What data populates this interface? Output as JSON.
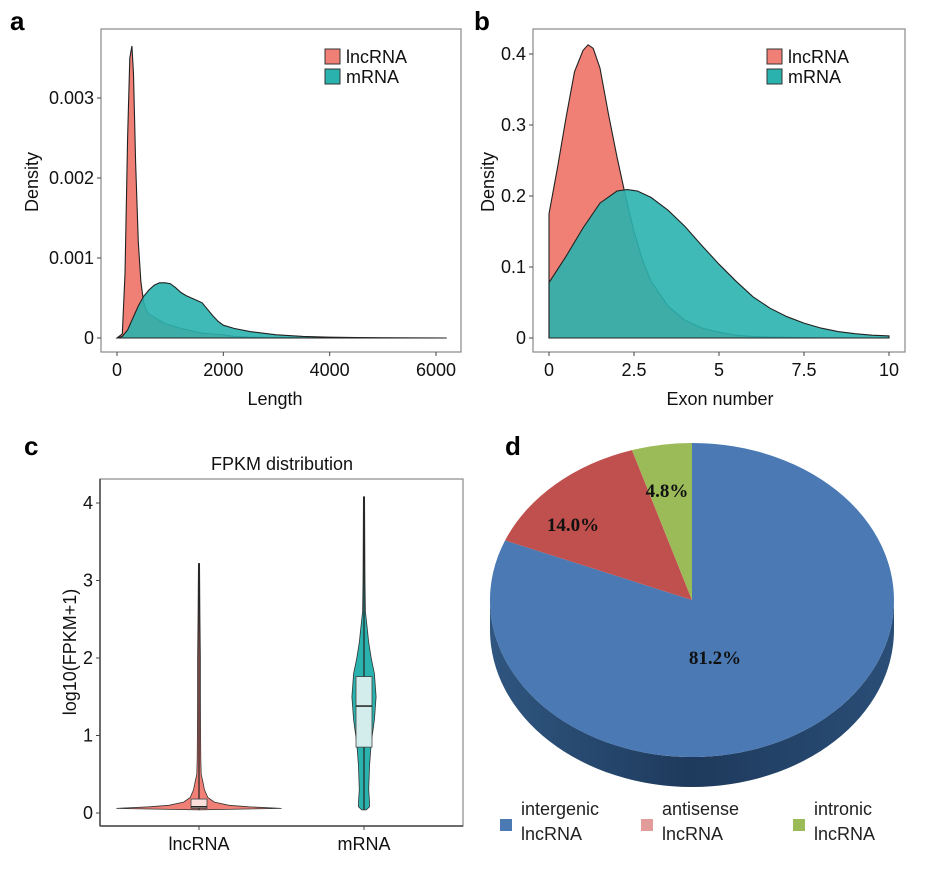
{
  "colors": {
    "lncRNA": "#F07F76",
    "mRNA": "#2AB3AE",
    "intergenic": "#4A79B4",
    "antisense": "#C0504D",
    "intronic": "#9BBB59",
    "antisense_legend": "#E29C9A"
  },
  "panels": {
    "a": {
      "letter": "a"
    },
    "b": {
      "letter": "b"
    },
    "c": {
      "letter": "c"
    },
    "d": {
      "letter": "d"
    }
  },
  "chart_data": [
    {
      "id": "a",
      "type": "area",
      "title": "",
      "xlabel": "Length",
      "ylabel": "Density",
      "xlim": [
        0,
        6200
      ],
      "ylim": [
        0,
        0.0037
      ],
      "xticks": [
        "0",
        "2000",
        "4000",
        "6000"
      ],
      "xtick_values": [
        0,
        2000,
        4000,
        6000
      ],
      "yticks": [
        "0",
        "0.001",
        "0.002",
        "0.003"
      ],
      "ytick_values": [
        0,
        0.001,
        0.002,
        0.003
      ],
      "legend": {
        "position": "top-right",
        "entries": [
          "lncRNA",
          "mRNA"
        ]
      },
      "series": [
        {
          "name": "lncRNA",
          "x": [
            0,
            100,
            150,
            200,
            240,
            280,
            310,
            350,
            400,
            450,
            500,
            550,
            600,
            700,
            800,
            900,
            1000,
            1200,
            1400,
            1600,
            1800,
            2000,
            2200,
            2500,
            3000,
            4000,
            6200
          ],
          "y": [
            0,
            5e-05,
            0.0008,
            0.0025,
            0.0035,
            0.00365,
            0.0033,
            0.0022,
            0.0012,
            0.0007,
            0.00045,
            0.00035,
            0.0003,
            0.00026,
            0.00022,
            0.00018,
            0.00016,
            0.00012,
            9e-05,
            6e-05,
            5e-05,
            4e-05,
            2e-05,
            1e-05,
            5e-06,
            2e-06,
            0
          ]
        },
        {
          "name": "mRNA",
          "x": [
            0,
            100,
            200,
            300,
            400,
            500,
            600,
            700,
            800,
            900,
            1000,
            1100,
            1200,
            1300,
            1400,
            1500,
            1600,
            1700,
            1800,
            1900,
            2000,
            2200,
            2500,
            3000,
            3500,
            4000,
            4500,
            5000,
            5500,
            6200
          ],
          "y": [
            0,
            2e-05,
            0.0001,
            0.00025,
            0.0004,
            0.00052,
            0.0006,
            0.00066,
            0.00069,
            0.00069,
            0.00068,
            0.00063,
            0.00057,
            0.00053,
            0.0005,
            0.00047,
            0.00044,
            0.00036,
            0.00028,
            0.00021,
            0.00016,
            0.00012,
            8e-05,
            4e-05,
            2e-05,
            1e-05,
            6e-06,
            3e-06,
            1e-06,
            0
          ]
        }
      ]
    },
    {
      "id": "b",
      "type": "area",
      "title": "",
      "xlabel": "Exon number",
      "ylabel": "Density",
      "xlim": [
        0,
        10
      ],
      "ylim": [
        0,
        0.42
      ],
      "xticks": [
        "0",
        "2.5",
        "5",
        "7.5",
        "10"
      ],
      "xtick_values": [
        0,
        2.5,
        5,
        7.5,
        10
      ],
      "yticks": [
        "0",
        "0.1",
        "0.2",
        "0.3",
        "0.4"
      ],
      "ytick_values": [
        0,
        0.1,
        0.2,
        0.3,
        0.4
      ],
      "legend": {
        "position": "top-right",
        "entries": [
          "lncRNA",
          "mRNA"
        ]
      },
      "series": [
        {
          "name": "lncRNA",
          "x": [
            0,
            0.25,
            0.5,
            0.75,
            1.0,
            1.15,
            1.3,
            1.5,
            1.75,
            2.0,
            2.25,
            2.5,
            2.75,
            3.0,
            3.5,
            4.0,
            4.5,
            5.0,
            5.5,
            6.0,
            7.0,
            8.0,
            10.0
          ],
          "y": [
            0.175,
            0.24,
            0.31,
            0.375,
            0.405,
            0.413,
            0.408,
            0.38,
            0.315,
            0.255,
            0.2,
            0.15,
            0.11,
            0.08,
            0.045,
            0.025,
            0.014,
            0.008,
            0.004,
            0.002,
            0.001,
            0.0,
            0.0
          ]
        },
        {
          "name": "mRNA",
          "x": [
            0,
            0.5,
            1.0,
            1.5,
            2.0,
            2.3,
            2.6,
            3.0,
            3.5,
            4.0,
            4.5,
            5.0,
            5.5,
            6.0,
            6.5,
            7.0,
            7.5,
            8.0,
            8.5,
            9.0,
            9.5,
            10.0
          ],
          "y": [
            0.078,
            0.115,
            0.155,
            0.19,
            0.207,
            0.209,
            0.207,
            0.198,
            0.18,
            0.157,
            0.13,
            0.104,
            0.08,
            0.058,
            0.042,
            0.03,
            0.021,
            0.014,
            0.009,
            0.006,
            0.004,
            0.003
          ]
        }
      ]
    },
    {
      "id": "c",
      "type": "violin",
      "title": "FPKM distribution",
      "xlabel": "",
      "ylabel": "log10(FPKM+1)",
      "ylim": [
        -0.1,
        4.2
      ],
      "yticks": [
        "0",
        "1",
        "2",
        "3",
        "4"
      ],
      "ytick_values": [
        0,
        1,
        2,
        3,
        4
      ],
      "categories": [
        "lncRNA",
        "mRNA"
      ],
      "series": [
        {
          "name": "lncRNA",
          "min": 0.04,
          "max": 3.22,
          "box": {
            "q1": 0.06,
            "median": 0.08,
            "q3": 0.18
          },
          "profile_y": [
            0.04,
            0.06,
            0.08,
            0.1,
            0.14,
            0.2,
            0.3,
            0.4,
            0.5,
            0.7,
            1.0,
            1.5,
            2.0,
            2.5,
            3.22
          ],
          "profile_halfwidth": [
            0.0,
            1.0,
            0.6,
            0.36,
            0.18,
            0.1,
            0.06,
            0.04,
            0.02,
            0.015,
            0.012,
            0.01,
            0.01,
            0.005,
            0.0
          ]
        },
        {
          "name": "mRNA",
          "min": 0.04,
          "max": 4.08,
          "box": {
            "q1": 0.85,
            "median": 1.38,
            "q3": 1.76
          },
          "profile_y": [
            0.04,
            0.08,
            0.15,
            0.3,
            0.6,
            0.9,
            1.2,
            1.5,
            1.8,
            2.0,
            2.2,
            2.4,
            2.6,
            3.0,
            4.08
          ],
          "profile_halfwidth": [
            0.02,
            0.06,
            0.06,
            0.05,
            0.06,
            0.08,
            0.12,
            0.14,
            0.12,
            0.08,
            0.05,
            0.03,
            0.01,
            0.005,
            0.0
          ]
        }
      ]
    },
    {
      "id": "d",
      "type": "pie",
      "title": "",
      "start": "12 o'clock, clockwise",
      "style": "3d",
      "slices": [
        {
          "label": "intergenic lncRNA",
          "legend_line1": "intergenic",
          "legend_line2": "lncRNA",
          "value": 81.2,
          "text": "81.2%"
        },
        {
          "label": "antisense lncRNA",
          "legend_line1": "antisense",
          "legend_line2": "lncRNA",
          "value": 14.0,
          "text": "14.0%"
        },
        {
          "label": "intronic lncRNA",
          "legend_line1": "intronic",
          "legend_line2": "lncRNA",
          "value": 4.8,
          "text": "4.8%"
        }
      ],
      "legend": {
        "position": "bottom"
      }
    }
  ]
}
